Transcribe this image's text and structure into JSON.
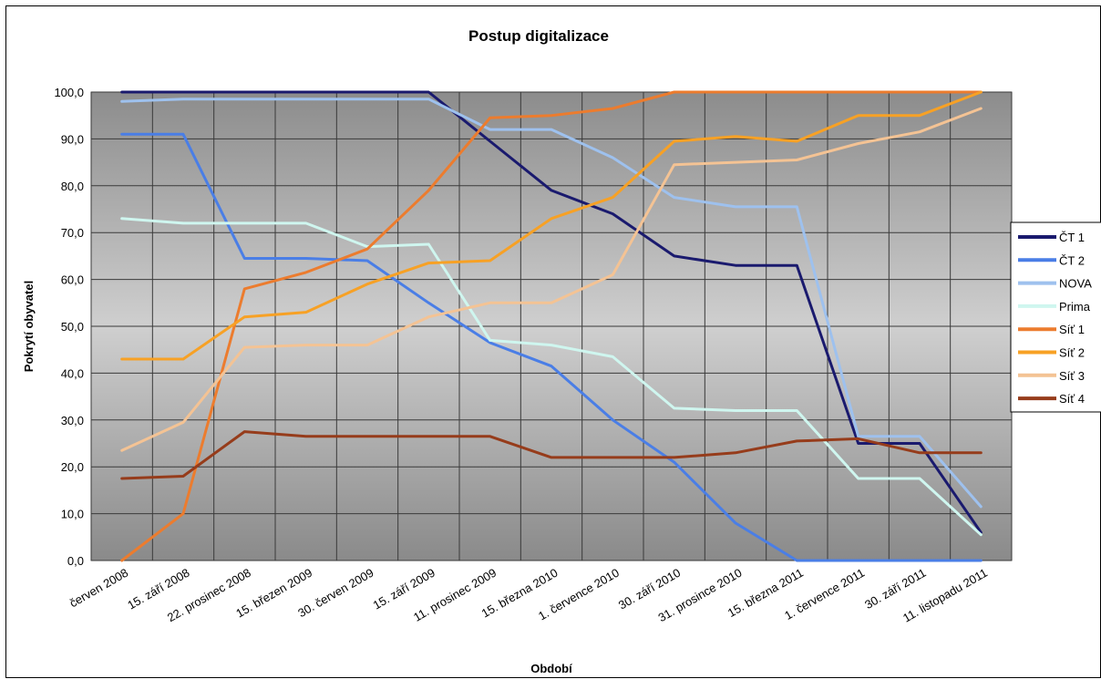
{
  "chart_data": {
    "type": "line",
    "title": "Postup digitalizace",
    "xlabel": "Období",
    "ylabel": "Pokrytí obyvatel",
    "ylim": [
      0,
      100
    ],
    "yticks": [
      "0,0",
      "10,0",
      "20,0",
      "30,0",
      "40,0",
      "50,0",
      "60,0",
      "70,0",
      "80,0",
      "90,0",
      "100,0"
    ],
    "categories": [
      "červen 2008",
      "15. září 2008",
      "22. prosinec 2008",
      "15. březen 2009",
      "30. červen 2009",
      "15. září 2009",
      "11. prosinec 2009",
      "15. března 2010",
      "1. července 2010",
      "30. září 2010",
      "31. prosince 2010",
      "15. března 2011",
      "1. července 2011",
      "30. září 2011",
      "11. listopadu 2011"
    ],
    "grid": true,
    "legend_position": "right",
    "series": [
      {
        "name": "ČT 1",
        "color": "#1a1a6e",
        "values": [
          100,
          100,
          100,
          100,
          100,
          100,
          89.5,
          79,
          74,
          65,
          63,
          63,
          25,
          25,
          6
        ]
      },
      {
        "name": "ČT 2",
        "color": "#4a7ee6",
        "values": [
          91,
          91,
          64.5,
          64.5,
          64,
          55,
          46.5,
          41.5,
          30,
          21,
          8,
          0,
          0,
          0,
          0
        ]
      },
      {
        "name": "NOVA",
        "color": "#9ec1ee",
        "values": [
          98,
          98.5,
          98.5,
          98.5,
          98.5,
          98.5,
          92,
          92,
          86,
          77.5,
          75.5,
          75.5,
          26.5,
          26.5,
          11.5
        ]
      },
      {
        "name": "Prima",
        "color": "#cff6ef",
        "values": [
          73,
          72,
          72,
          72,
          67,
          67.5,
          47,
          46,
          43.5,
          32.5,
          32,
          32,
          17.5,
          17.5,
          5.5
        ]
      },
      {
        "name": "Síť 1",
        "color": "#ec7c2e",
        "values": [
          0,
          10,
          58,
          61.5,
          66.5,
          79,
          94.5,
          95,
          96.5,
          100,
          100,
          100,
          100,
          100,
          100
        ]
      },
      {
        "name": "Síť 2",
        "color": "#f7a125",
        "values": [
          43,
          43,
          52,
          53,
          59,
          63.5,
          64,
          73,
          77.5,
          89.5,
          90.5,
          89.5,
          95,
          95,
          100
        ]
      },
      {
        "name": "Síť 3",
        "color": "#f4c394",
        "values": [
          23.5,
          29.5,
          45.5,
          46,
          46,
          52,
          55,
          55,
          61,
          84.5,
          85,
          85.5,
          89,
          91.5,
          96.5
        ]
      },
      {
        "name": "Síť 4",
        "color": "#963c1b",
        "values": [
          17.5,
          18,
          27.5,
          26.5,
          26.5,
          26.5,
          26.5,
          22,
          22,
          22,
          23,
          25.5,
          26,
          23,
          23
        ]
      }
    ]
  }
}
